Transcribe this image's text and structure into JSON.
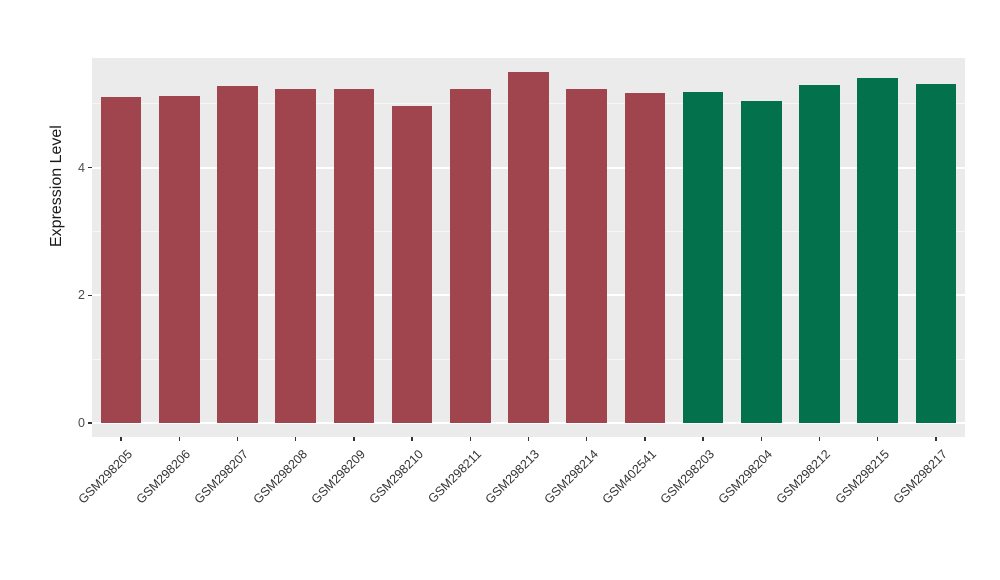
{
  "chart_data": {
    "type": "bar",
    "title": "",
    "xlabel": "",
    "ylabel": "Expression Level",
    "ylim": [
      -0.22,
      5.72
    ],
    "yticks": [
      0,
      2,
      4
    ],
    "minor_ticks": [
      1,
      3,
      5
    ],
    "grid": "on",
    "legend": "none",
    "panel_background": "#EBEBEB",
    "categories": [
      "GSM298205",
      "GSM298206",
      "GSM298207",
      "GSM298208",
      "GSM298209",
      "GSM298210",
      "GSM298211",
      "GSM298213",
      "GSM298214",
      "GSM402541",
      "GSM298203",
      "GSM298204",
      "GSM298212",
      "GSM298215",
      "GSM298217"
    ],
    "values": [
      5.11,
      5.13,
      5.28,
      5.24,
      5.24,
      4.97,
      5.24,
      5.5,
      5.24,
      5.17,
      5.19,
      5.05,
      5.3,
      5.41,
      5.31
    ],
    "groups": [
      "red",
      "red",
      "red",
      "red",
      "red",
      "red",
      "red",
      "red",
      "red",
      "red",
      "green",
      "green",
      "green",
      "green",
      "green"
    ],
    "colors": {
      "red": "#A0454E",
      "green": "#03714B"
    },
    "bar_width_ratio": 0.7
  }
}
